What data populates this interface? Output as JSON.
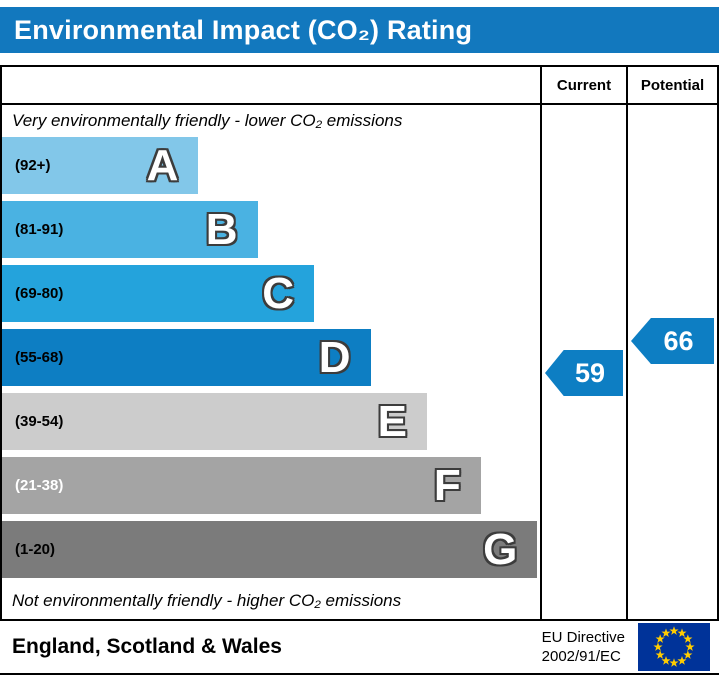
{
  "header": {
    "title": "Environmental Impact (CO₂) Rating"
  },
  "columns": {
    "current": "Current",
    "potential": "Potential"
  },
  "notes": {
    "top": "Very environmentally friendly - lower CO₂ emissions",
    "bottom": "Not environmentally friendly - higher CO₂ emissions"
  },
  "footer": {
    "region": "England, Scotland & Wales",
    "directive_line1": "EU Directive",
    "directive_line2": "2002/91/EC"
  },
  "colors": {
    "header_bg": "#1278be",
    "arrow": "#0d7ec3",
    "flag_blue": "#003399",
    "star_yellow": "#ffcc00"
  },
  "chart_data": {
    "type": "bar",
    "orientation": "horizontal",
    "title": "Environmental Impact (CO2) Rating",
    "bands": [
      {
        "letter": "A",
        "range": "(92+)",
        "color": "#82c7e9",
        "width_pct": 36.5,
        "label_color": "#000000"
      },
      {
        "letter": "B",
        "range": "(81-91)",
        "color": "#4ab2e2",
        "width_pct": 47.5,
        "label_color": "#000000"
      },
      {
        "letter": "C",
        "range": "(69-80)",
        "color": "#24a3dc",
        "width_pct": 58,
        "label_color": "#000000"
      },
      {
        "letter": "D",
        "range": "(55-68)",
        "color": "#0d7ec3",
        "width_pct": 68.5,
        "label_color": "#000000"
      },
      {
        "letter": "E",
        "range": "(39-54)",
        "color": "#cccccc",
        "width_pct": 79,
        "label_color": "#000000"
      },
      {
        "letter": "F",
        "range": "(21-38)",
        "color": "#a4a4a4",
        "width_pct": 89,
        "label_color": "#ffffff"
      },
      {
        "letter": "G",
        "range": "(1-20)",
        "color": "#7b7b7b",
        "width_pct": 99.5,
        "label_color": "#000000"
      }
    ],
    "current": {
      "value": 59,
      "band": "D"
    },
    "potential": {
      "value": 66,
      "band": "D"
    }
  }
}
